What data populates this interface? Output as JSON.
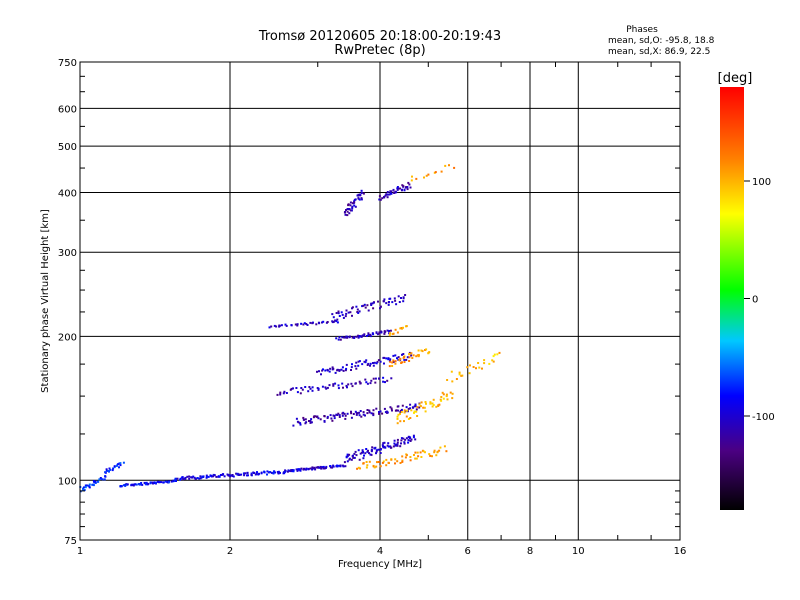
{
  "chart_data": {
    "type": "scatter",
    "title": "Tromsø 20120605 20:18:00-20:19:43",
    "subtitle": "RwPretec (8p)",
    "xlabel": "Frequency [MHz]",
    "ylabel": "Stationary phase Virtual Height [km]",
    "x_scale": "log",
    "y_scale": "log",
    "xlim": [
      1,
      16
    ],
    "ylim": [
      75,
      750
    ],
    "x_ticks": [
      {
        "value": 1,
        "label": "1"
      },
      {
        "value": 2,
        "label": "2"
      },
      {
        "value": 4,
        "label": "4"
      },
      {
        "value": 6,
        "label": "6"
      },
      {
        "value": 8,
        "label": "8"
      },
      {
        "value": 10,
        "label": "10"
      },
      {
        "value": 16,
        "label": "16"
      }
    ],
    "y_ticks": [
      {
        "value": 75,
        "label": "75"
      },
      {
        "value": 100,
        "label": "100"
      },
      {
        "value": 200,
        "label": "200"
      },
      {
        "value": 300,
        "label": "300"
      },
      {
        "value": 400,
        "label": "400"
      },
      {
        "value": 500,
        "label": "500"
      },
      {
        "value": 600,
        "label": "600"
      },
      {
        "value": 750,
        "label": "750"
      }
    ],
    "grid": true,
    "phases": {
      "heading": "Phases",
      "line_o": "mean, sd,O: -95.8, 18.8",
      "line_x": "mean, sd,X:  86.9, 22.5"
    },
    "colorbar": {
      "label": "[deg]",
      "range": [
        -180,
        180
      ],
      "ticks": [
        {
          "value": 100,
          "label": "100"
        },
        {
          "value": 0,
          "label": "0"
        },
        {
          "value": -100,
          "label": "-100"
        }
      ]
    },
    "traces": [
      {
        "name": "",
        "x_range": [
          1.0,
          1.12
        ],
        "h_range": [
          94,
          103
        ],
        "phase": -75,
        "count": 30
      },
      {
        "name": "",
        "x_range": [
          1.12,
          1.22
        ],
        "h_range": [
          102,
          110
        ],
        "phase": -80,
        "count": 20
      },
      {
        "name": "",
        "x_range": [
          1.2,
          1.55
        ],
        "h_range": [
          97,
          100
        ],
        "phase": -90,
        "count": 60
      },
      {
        "name": "",
        "x_range": [
          1.55,
          2.6
        ],
        "h_range": [
          100,
          105
        ],
        "phase": -95,
        "count": 110
      },
      {
        "name": "",
        "x_range": [
          2.6,
          3.4
        ],
        "h_range": [
          104,
          108
        ],
        "phase": -100,
        "count": 60
      },
      {
        "name": "",
        "x_range": [
          3.4,
          4.7
        ],
        "h_range": [
          108,
          125
        ],
        "phase": -105,
        "count": 90
      },
      {
        "name": "",
        "x_range": [
          3.6,
          5.4
        ],
        "h_range": [
          104,
          118
        ],
        "phase": 110,
        "count": 60
      },
      {
        "name": "",
        "x_range": [
          2.7,
          4.8
        ],
        "h_range": [
          130,
          145
        ],
        "phase": -115,
        "count": 110
      },
      {
        "name": "",
        "x_range": [
          4.3,
          5.6
        ],
        "h_range": [
          130,
          155
        ],
        "phase": 100,
        "count": 50
      },
      {
        "name": "",
        "x_range": [
          2.5,
          4.2
        ],
        "h_range": [
          150,
          165
        ],
        "phase": -110,
        "count": 60
      },
      {
        "name": "",
        "x_range": [
          3.0,
          4.6
        ],
        "h_range": [
          165,
          185
        ],
        "phase": -105,
        "count": 70
      },
      {
        "name": "",
        "x_range": [
          4.2,
          5.0
        ],
        "h_range": [
          172,
          190
        ],
        "phase": 110,
        "count": 35
      },
      {
        "name": "",
        "x_range": [
          5.5,
          7.0
        ],
        "h_range": [
          160,
          185
        ],
        "phase": 95,
        "count": 25
      },
      {
        "name": "",
        "x_range": [
          3.3,
          4.2
        ],
        "h_range": [
          196,
          206
        ],
        "phase": -110,
        "count": 50
      },
      {
        "name": "",
        "x_range": [
          4.2,
          4.5
        ],
        "h_range": [
          200,
          212
        ],
        "phase": 110,
        "count": 12
      },
      {
        "name": "",
        "x_range": [
          2.4,
          3.3
        ],
        "h_range": [
          208,
          216
        ],
        "phase": -105,
        "count": 35
      },
      {
        "name": "",
        "x_range": [
          3.2,
          4.5
        ],
        "h_range": [
          215,
          245
        ],
        "phase": -110,
        "count": 60
      },
      {
        "name": "",
        "x_range": [
          3.4,
          3.7
        ],
        "h_range": [
          355,
          405
        ],
        "phase": -110,
        "count": 40
      },
      {
        "name": "",
        "x_range": [
          4.0,
          4.6
        ],
        "h_range": [
          385,
          420
        ],
        "phase": -110,
        "count": 45
      },
      {
        "name": "",
        "x_range": [
          4.6,
          5.6
        ],
        "h_range": [
          420,
          460
        ],
        "phase": 110,
        "count": 12
      }
    ]
  }
}
